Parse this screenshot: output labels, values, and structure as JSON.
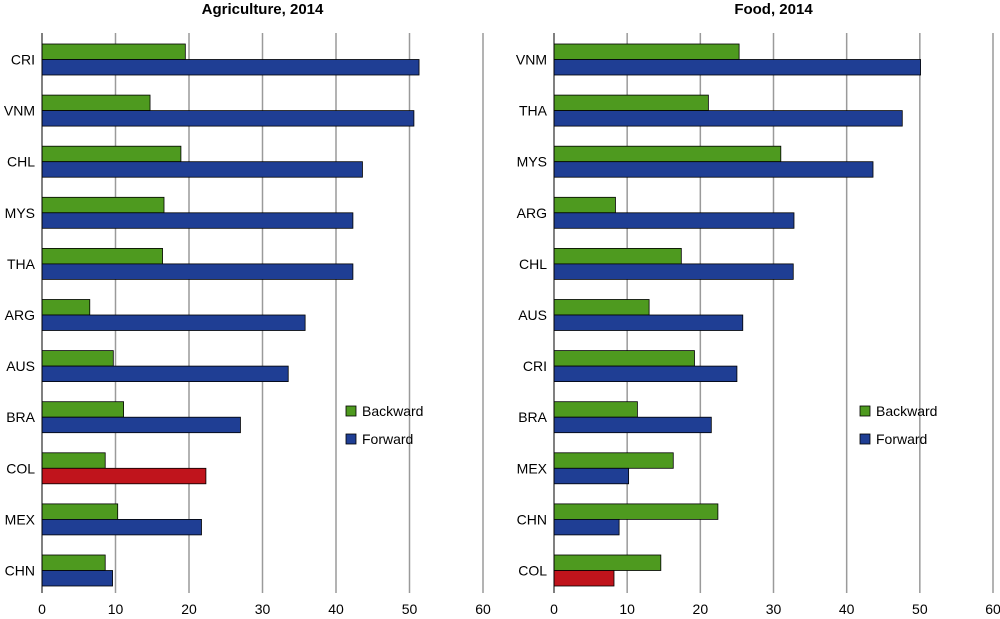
{
  "colors": {
    "backward": "#4e9a1f",
    "forward": "#1f3e94",
    "highlight": "#c0141c",
    "grid": "#9a9a9a"
  },
  "chart_data": [
    {
      "type": "bar",
      "orientation": "horizontal",
      "title": "Agriculture, 2014",
      "categories": [
        "CRI",
        "VNM",
        "CHL",
        "MYS",
        "THA",
        "ARG",
        "AUS",
        "BRA",
        "COL",
        "MEX",
        "CHN"
      ],
      "series": [
        {
          "name": "Backward",
          "values": [
            19.5,
            14.7,
            18.9,
            16.6,
            16.4,
            6.5,
            9.7,
            11.1,
            8.6,
            10.3,
            8.6
          ]
        },
        {
          "name": "Forward",
          "values": [
            51.3,
            50.6,
            43.6,
            42.3,
            42.3,
            35.8,
            33.5,
            27.0,
            22.3,
            21.7,
            9.6
          ]
        }
      ],
      "highlight_category": "COL",
      "xlim": [
        0,
        60
      ],
      "xticks": [
        0,
        10,
        20,
        30,
        40,
        50,
        60
      ],
      "grid": true,
      "legend": "middle-right"
    },
    {
      "type": "bar",
      "orientation": "horizontal",
      "title": "Food, 2014",
      "categories": [
        "VNM",
        "THA",
        "MYS",
        "ARG",
        "CHL",
        "AUS",
        "CRI",
        "BRA",
        "MEX",
        "CHN",
        "COL"
      ],
      "series": [
        {
          "name": "Backward",
          "values": [
            25.3,
            21.1,
            31.0,
            8.4,
            17.4,
            13.0,
            19.2,
            11.4,
            16.3,
            22.4,
            14.6
          ]
        },
        {
          "name": "Forward",
          "values": [
            50.1,
            47.6,
            43.6,
            32.8,
            32.7,
            25.8,
            25.0,
            21.5,
            10.2,
            8.9,
            8.2
          ]
        }
      ],
      "highlight_category": "COL",
      "xlim": [
        0,
        60
      ],
      "xticks": [
        0,
        10,
        20,
        30,
        40,
        50,
        60
      ],
      "grid": true,
      "legend": "middle-right"
    }
  ]
}
